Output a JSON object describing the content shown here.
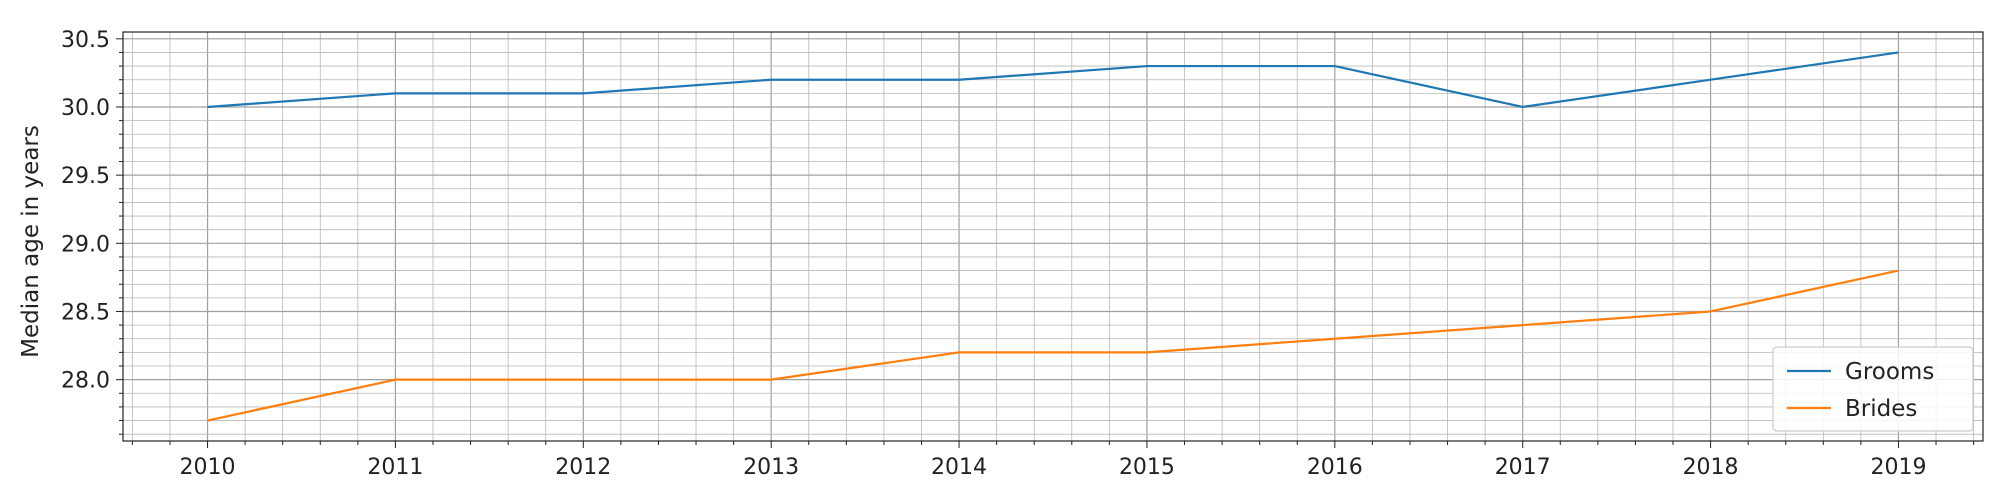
{
  "chart_data": {
    "type": "line",
    "x": [
      2010,
      2011,
      2012,
      2013,
      2014,
      2015,
      2016,
      2017,
      2018,
      2019
    ],
    "series": [
      {
        "name": "Grooms",
        "color": "#1f77b4",
        "values": [
          30.0,
          30.1,
          30.1,
          30.2,
          30.2,
          30.3,
          30.3,
          30.0,
          30.2,
          30.4
        ]
      },
      {
        "name": "Brides",
        "color": "#ff7f0e",
        "values": [
          27.7,
          28.0,
          28.0,
          28.0,
          28.2,
          28.2,
          28.3,
          28.4,
          28.5,
          28.8
        ]
      }
    ],
    "xlabel": "",
    "ylabel": "Median age in years",
    "xlim": [
      2009.55,
      2019.45
    ],
    "ylim": [
      27.55,
      30.55
    ],
    "yticks": [
      "28.0",
      "28.5",
      "29.0",
      "29.5",
      "30.0",
      "30.5"
    ],
    "xticks": [
      "2010",
      "2011",
      "2012",
      "2013",
      "2014",
      "2015",
      "2016",
      "2017",
      "2018",
      "2019"
    ],
    "grid": true,
    "minor_grid": true,
    "legend_position": "bottom-right"
  }
}
